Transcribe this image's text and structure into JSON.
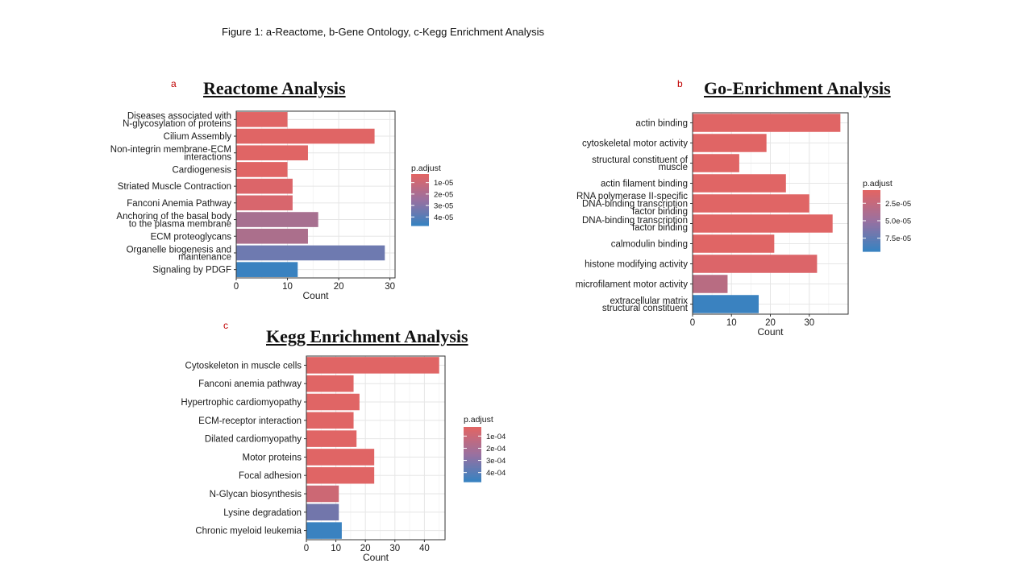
{
  "figure_caption": "Figure 1: a-Reactome, b-Gene Ontology, c-Kegg Enrichment Analysis",
  "chart_data": [
    {
      "id": "a",
      "panel_letter": "a",
      "title": "Reactome Analysis",
      "type": "bar",
      "orientation": "horizontal",
      "xlabel": "Count",
      "xlim": [
        0,
        31
      ],
      "xticks": [
        0,
        10,
        20,
        30
      ],
      "legend_title": "p.adjust",
      "legend_ticks": [
        "1e-05",
        "2e-05",
        "3e-05",
        "4e-05"
      ],
      "categories": [
        [
          "Diseases associated with",
          "N-glycosylation of proteins"
        ],
        [
          "Cilium Assembly"
        ],
        [
          "Non-integrin membrane-ECM",
          "interactions"
        ],
        [
          "Cardiogenesis"
        ],
        [
          "Striated Muscle Contraction"
        ],
        [
          "Fanconi Anemia Pathway"
        ],
        [
          "Anchoring of the basal body",
          "to the plasma membrane"
        ],
        [
          "ECM proteoglycans"
        ],
        [
          "Organelle biogenesis and",
          "maintenance"
        ],
        [
          "Signaling by PDGF"
        ]
      ],
      "values": [
        10,
        27,
        14,
        10,
        11,
        11,
        16,
        14,
        29,
        12
      ],
      "colors": [
        "#e06565",
        "#e06565",
        "#e06565",
        "#e06565",
        "#dc6569",
        "#d8666d",
        "#a77090",
        "#ab6f8c",
        "#6e7ab0",
        "#3a82c0"
      ]
    },
    {
      "id": "b",
      "panel_letter": "b",
      "title": "Go-Enrichment Analysis",
      "type": "bar",
      "orientation": "horizontal",
      "xlabel": "Count",
      "xlim": [
        0,
        40
      ],
      "xticks": [
        0,
        10,
        20,
        30
      ],
      "legend_title": "p.adjust",
      "legend_ticks": [
        "2.5e-05",
        "5.0e-05",
        "7.5e-05"
      ],
      "categories": [
        [
          "actin binding"
        ],
        [
          "cytoskeletal motor activity"
        ],
        [
          "structural constituent of",
          "muscle"
        ],
        [
          "actin filament binding"
        ],
        [
          "RNA polymerase II-specific",
          "DNA-binding transcription",
          "factor binding"
        ],
        [
          "DNA-binding transcription",
          "factor binding"
        ],
        [
          "calmodulin binding"
        ],
        [
          "histone modifying activity"
        ],
        [
          "microfilament motor activity"
        ],
        [
          "extracellular matrix",
          "structural constituent"
        ]
      ],
      "values": [
        38,
        19,
        12,
        24,
        30,
        36,
        21,
        32,
        9,
        17
      ],
      "colors": [
        "#e06565",
        "#e06565",
        "#e06565",
        "#e06565",
        "#e06565",
        "#e06565",
        "#e06565",
        "#dc6569",
        "#b86c82",
        "#3a82c0"
      ]
    },
    {
      "id": "c",
      "panel_letter": "c",
      "title": "Kegg Enrichment Analysis",
      "type": "bar",
      "orientation": "horizontal",
      "xlabel": "Count",
      "xlim": [
        0,
        47
      ],
      "xticks": [
        0,
        10,
        20,
        30,
        40
      ],
      "legend_title": "p.adjust",
      "legend_ticks": [
        "1e-04",
        "2e-04",
        "3e-04",
        "4e-04"
      ],
      "categories": [
        [
          "Cytoskeleton in muscle cells"
        ],
        [
          "Fanconi anemia pathway"
        ],
        [
          "Hypertrophic cardiomyopathy"
        ],
        [
          "ECM-receptor interaction"
        ],
        [
          "Dilated cardiomyopathy"
        ],
        [
          "Motor proteins"
        ],
        [
          "Focal adhesion"
        ],
        [
          "N-Glycan biosynthesis"
        ],
        [
          "Lysine degradation"
        ],
        [
          "Chronic myeloid leukemia"
        ]
      ],
      "values": [
        45,
        16,
        18,
        16,
        17,
        23,
        23,
        11,
        11,
        12
      ],
      "colors": [
        "#e06565",
        "#e06565",
        "#e06565",
        "#e06565",
        "#e06565",
        "#e06565",
        "#e06565",
        "#cc6874",
        "#7276ab",
        "#3a82c0"
      ]
    }
  ]
}
